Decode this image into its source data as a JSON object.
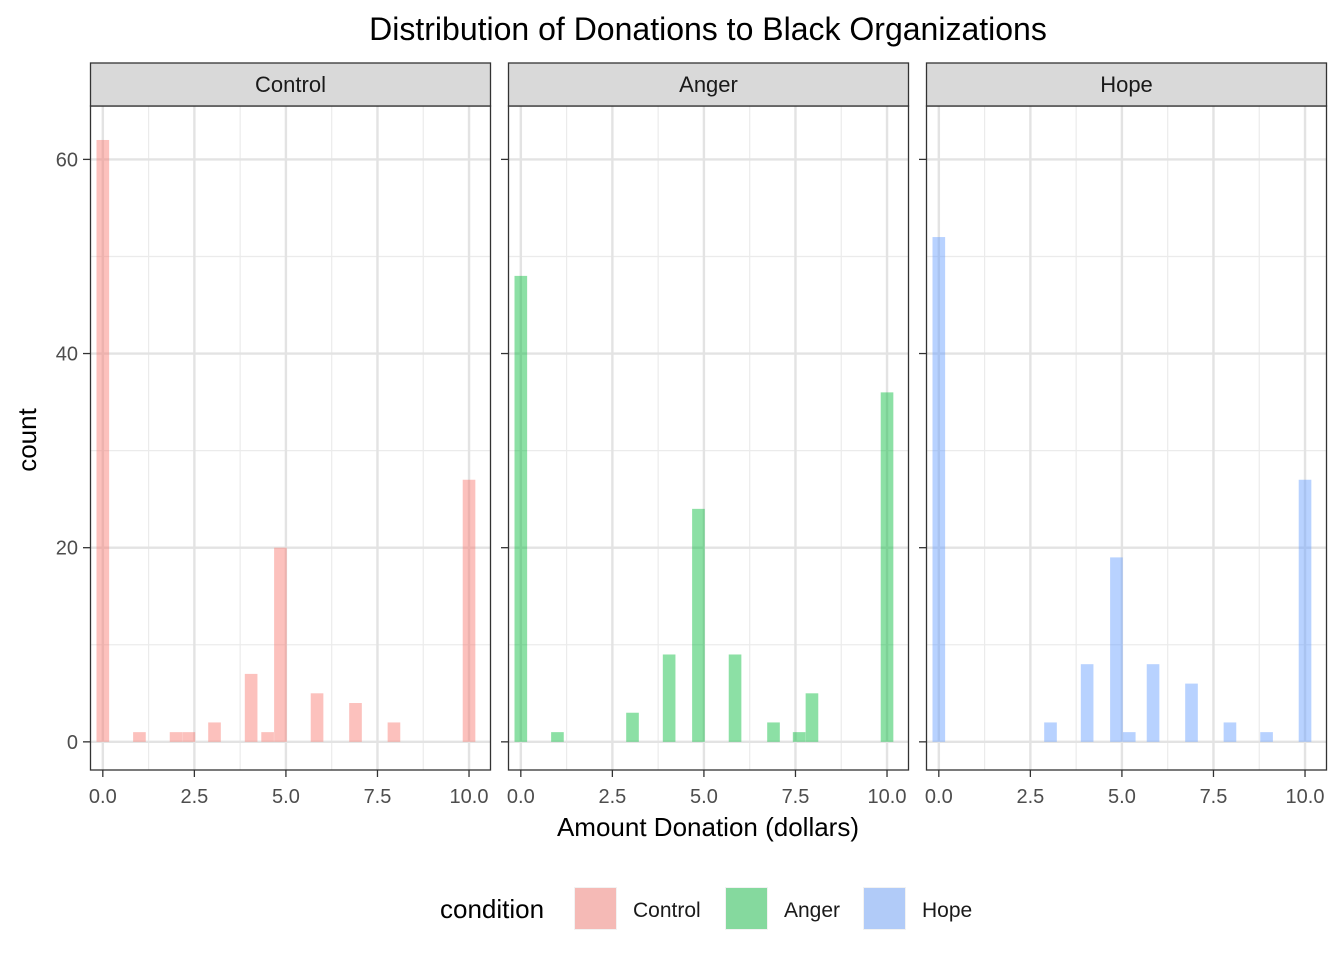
{
  "chart_data": {
    "type": "bar",
    "title": "Distribution of Donations to Black Organizations",
    "xlabel": "Amount Donation (dollars)",
    "ylabel": "count",
    "xlim": [
      -0.35,
      10.6
    ],
    "ylim": [
      -2.9,
      65.5
    ],
    "xticks": [
      0,
      2.5,
      5,
      7.5,
      10
    ],
    "xtick_labels": [
      "0.0",
      "2.5",
      "5.0",
      "7.5",
      "10.0"
    ],
    "yticks": [
      0,
      20,
      40,
      60
    ],
    "ytick_labels": [
      "0",
      "20",
      "40",
      "60"
    ],
    "bin_width": 0.345,
    "grid": true,
    "legend": {
      "title": "condition",
      "position": "bottom",
      "entries": [
        "Control",
        "Anger",
        "Hope"
      ]
    },
    "series": [
      {
        "name": "Control",
        "color": "#F8766D",
        "bins": [
          {
            "x": 0.0,
            "count": 62
          },
          {
            "x": 1.0,
            "count": 1
          },
          {
            "x": 2.0,
            "count": 1
          },
          {
            "x": 2.35,
            "count": 1
          },
          {
            "x": 3.05,
            "count": 2
          },
          {
            "x": 4.05,
            "count": 7
          },
          {
            "x": 4.5,
            "count": 1
          },
          {
            "x": 4.85,
            "count": 20
          },
          {
            "x": 5.85,
            "count": 5
          },
          {
            "x": 6.9,
            "count": 4
          },
          {
            "x": 7.95,
            "count": 2
          },
          {
            "x": 10.0,
            "count": 27
          }
        ]
      },
      {
        "name": "Anger",
        "color": "#00BA38",
        "bins": [
          {
            "x": 0.0,
            "count": 48
          },
          {
            "x": 1.0,
            "count": 1
          },
          {
            "x": 3.05,
            "count": 3
          },
          {
            "x": 4.05,
            "count": 9
          },
          {
            "x": 4.85,
            "count": 24
          },
          {
            "x": 5.85,
            "count": 9
          },
          {
            "x": 6.9,
            "count": 2
          },
          {
            "x": 7.6,
            "count": 1
          },
          {
            "x": 7.95,
            "count": 5
          },
          {
            "x": 10.0,
            "count": 36
          }
        ]
      },
      {
        "name": "Hope",
        "color": "#619CFF",
        "bins": [
          {
            "x": 0.0,
            "count": 52
          },
          {
            "x": 3.05,
            "count": 2
          },
          {
            "x": 4.05,
            "count": 8
          },
          {
            "x": 4.85,
            "count": 19
          },
          {
            "x": 5.2,
            "count": 1
          },
          {
            "x": 5.85,
            "count": 8
          },
          {
            "x": 6.9,
            "count": 6
          },
          {
            "x": 7.95,
            "count": 2
          },
          {
            "x": 8.95,
            "count": 1
          },
          {
            "x": 10.0,
            "count": 27
          }
        ]
      }
    ]
  }
}
